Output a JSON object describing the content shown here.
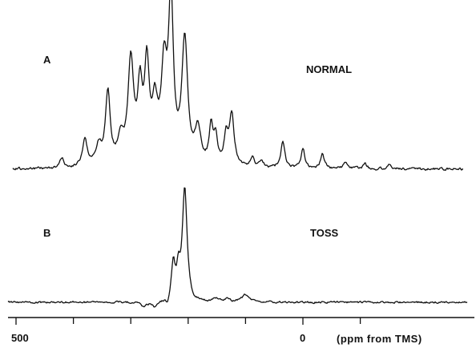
{
  "chart_data": {
    "type": "line",
    "xlabel": "(ppm from TMS)",
    "x_reversed": true,
    "xlim": [
      500,
      -100
    ],
    "x_ticks": [
      {
        "value": 500,
        "label": "500"
      },
      {
        "value": 0,
        "label": "0"
      }
    ],
    "grid": false,
    "panels": [
      {
        "label": "A",
        "title": "NORMAL",
        "series": [
          {
            "baseline": 0,
            "peaks": [
              {
                "x": 420,
                "y": 0.06,
                "w": 4
              },
              {
                "x": 380,
                "y": 0.17,
                "w": 5
              },
              {
                "x": 356,
                "y": 0.12,
                "w": 6
              },
              {
                "x": 340,
                "y": 0.46,
                "w": 5
              },
              {
                "x": 318,
                "y": 0.15,
                "w": 6
              },
              {
                "x": 300,
                "y": 0.64,
                "w": 6
              },
              {
                "x": 284,
                "y": 0.43,
                "w": 5
              },
              {
                "x": 272,
                "y": 0.58,
                "w": 5
              },
              {
                "x": 258,
                "y": 0.33,
                "w": 6
              },
              {
                "x": 242,
                "y": 0.56,
                "w": 6
              },
              {
                "x": 230,
                "y": 1.0,
                "w": 5
              },
              {
                "x": 206,
                "y": 0.78,
                "w": 6
              },
              {
                "x": 183,
                "y": 0.22,
                "w": 6
              },
              {
                "x": 160,
                "y": 0.24,
                "w": 4
              },
              {
                "x": 152,
                "y": 0.16,
                "w": 4
              },
              {
                "x": 134,
                "y": 0.18,
                "w": 4
              },
              {
                "x": 124,
                "y": 0.32,
                "w": 5
              },
              {
                "x": 88,
                "y": 0.06,
                "w": 4
              },
              {
                "x": 72,
                "y": 0.05,
                "w": 4
              },
              {
                "x": 35,
                "y": 0.17,
                "w": 4
              },
              {
                "x": 0,
                "y": 0.12,
                "w": 4
              },
              {
                "x": -34,
                "y": 0.09,
                "w": 4
              },
              {
                "x": -74,
                "y": 0.04,
                "w": 4
              },
              {
                "x": -108,
                "y": 0.03,
                "w": 4
              },
              {
                "x": -152,
                "y": 0.03,
                "w": 4
              }
            ]
          }
        ]
      },
      {
        "label": "B",
        "title": "TOSS",
        "series": [
          {
            "baseline": 0,
            "peaks": [
              {
                "x": 278,
                "y": -0.04,
                "w": 6
              },
              {
                "x": 258,
                "y": -0.05,
                "w": 6
              },
              {
                "x": 236,
                "y": -0.06,
                "w": 4
              },
              {
                "x": 226,
                "y": 0.32,
                "w": 4
              },
              {
                "x": 217,
                "y": 0.22,
                "w": 4
              },
              {
                "x": 206,
                "y": 1.0,
                "w": 5
              },
              {
                "x": 190,
                "y": -0.04,
                "w": 4
              },
              {
                "x": 152,
                "y": 0.03,
                "w": 5
              },
              {
                "x": 132,
                "y": 0.03,
                "w": 5
              },
              {
                "x": 100,
                "y": 0.07,
                "w": 7
              }
            ]
          }
        ]
      }
    ]
  }
}
